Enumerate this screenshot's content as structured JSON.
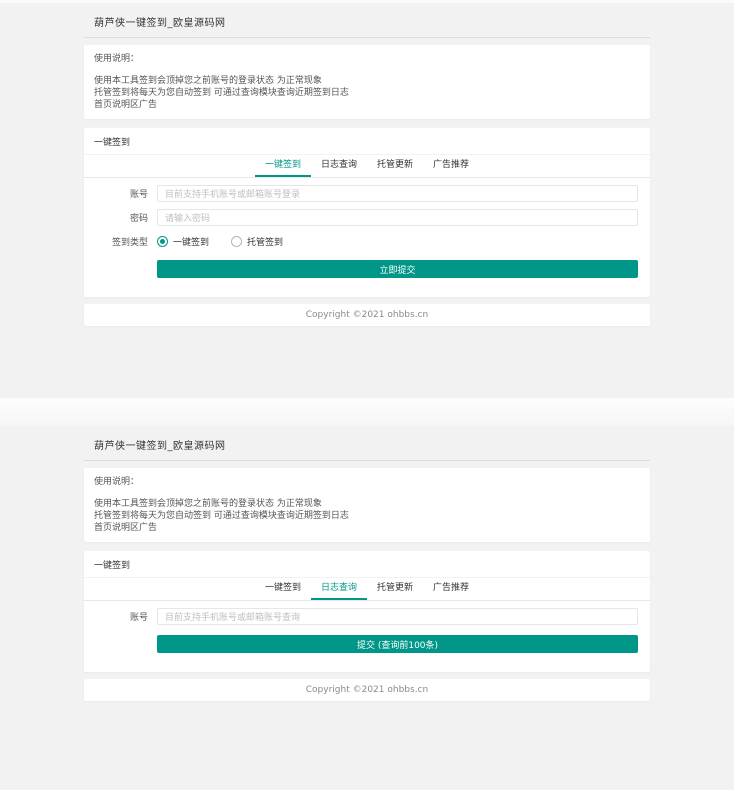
{
  "colors": {
    "accent": "#009688",
    "page_bg": "#f2f2f2",
    "card_bg": "#ffffff"
  },
  "header": {
    "title": "葫芦侠一键签到_欧皇源码网"
  },
  "notice": {
    "heading": "使用说明：",
    "line1": "使用本工具签到会顶掉您之前账号的登录状态 为正常现象",
    "line2": "托管签到将每天为您自动签到 可通过查询模块查询近期签到日志",
    "line3": "首页说明区广告"
  },
  "panel": {
    "title": "一键签到"
  },
  "tabs": {
    "signin": "一键签到",
    "log": "日志查询",
    "hosting": "托管更新",
    "ads": "广告推荐"
  },
  "signin_form": {
    "account_label": "账号",
    "account_placeholder": "目前支持手机账号或邮箱账号登录",
    "password_label": "密码",
    "password_placeholder": "请输入密码",
    "type_label": "签到类型",
    "radio_onekey": "一键签到",
    "radio_hosted": "托管签到",
    "submit_label": "立即提交"
  },
  "log_form": {
    "account_label": "账号",
    "account_placeholder": "目前支持手机账号或邮箱账号查询",
    "submit_label": "提交 (查询前100条)"
  },
  "footer": {
    "copyright": "Copyright ©2021 ohbbs.cn"
  }
}
